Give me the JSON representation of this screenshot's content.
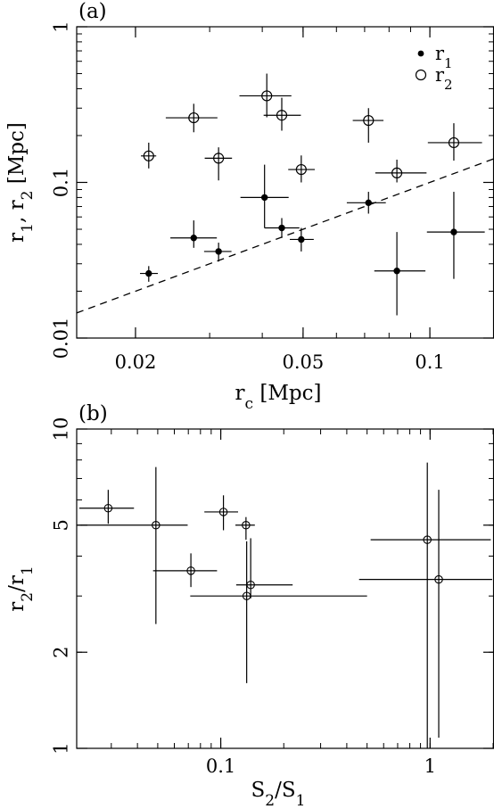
{
  "chart_data": [
    {
      "panel": "(a)",
      "type": "scatter",
      "x_scale": "log",
      "y_scale": "log",
      "xlim": [
        0.0145,
        0.142
      ],
      "ylim": [
        0.01,
        1
      ],
      "xlabel": "r_c [Mpc]",
      "ylabel": "r_1, r_2 [Mpc]",
      "xticks": [
        {
          "value": 0.02,
          "label": "0.02"
        },
        {
          "value": 0.05,
          "label": "0.05"
        },
        {
          "value": 0.1,
          "label": "0.1"
        }
      ],
      "yticks": [
        {
          "value": 0.01,
          "label": "0.01"
        },
        {
          "value": 0.1,
          "label": "0.1"
        },
        {
          "value": 1,
          "label": "1"
        }
      ],
      "legend": {
        "placement": "top-right",
        "entries": [
          {
            "marker": "filled-circle",
            "label": "r_1"
          },
          {
            "marker": "open-circle",
            "label": "r_2"
          }
        ]
      },
      "reference_line": {
        "style": "dashed",
        "from": [
          0.0145,
          0.0145
        ],
        "to": [
          0.142,
          0.142
        ]
      },
      "series": [
        {
          "name": "r_1",
          "marker": "filled-circle",
          "points": [
            {
              "x": 0.0215,
              "y": 0.026,
              "xerr": [
                0.0205,
                0.0226
              ],
              "yerr": [
                0.023,
                0.029
              ]
            },
            {
              "x": 0.0275,
              "y": 0.044,
              "xerr": [
                0.0242,
                0.0312
              ],
              "yerr": [
                0.038,
                0.057
              ]
            },
            {
              "x": 0.0315,
              "y": 0.036,
              "xerr": [
                0.0291,
                0.0338
              ],
              "yerr": [
                0.031,
                0.041
              ]
            },
            {
              "x": 0.0405,
              "y": 0.08,
              "xerr": [
                0.0355,
                0.0462
              ],
              "yerr": [
                0.051,
                0.13
              ]
            },
            {
              "x": 0.0445,
              "y": 0.051,
              "xerr": [
                0.0405,
                0.049
              ],
              "yerr": [
                0.044,
                0.059
              ]
            },
            {
              "x": 0.0495,
              "y": 0.043,
              "xerr": [
                0.0465,
                0.053
              ],
              "yerr": [
                0.036,
                0.051
              ]
            },
            {
              "x": 0.0715,
              "y": 0.074,
              "xerr": [
                0.0635,
                0.0786
              ],
              "yerr": [
                0.063,
                0.087
              ]
            },
            {
              "x": 0.0835,
              "y": 0.027,
              "xerr": [
                0.0738,
                0.0976
              ],
              "yerr": [
                0.014,
                0.048
              ]
            },
            {
              "x": 0.114,
              "y": 0.048,
              "xerr": [
                0.0984,
                0.135
              ],
              "yerr": [
                0.024,
                0.087
              ]
            }
          ]
        },
        {
          "name": "r_2",
          "marker": "open-circle",
          "points": [
            {
              "x": 0.0215,
              "y": 0.148,
              "xerr": [
                0.0206,
                0.0224
              ],
              "yerr": [
                0.123,
                0.18
              ]
            },
            {
              "x": 0.0275,
              "y": 0.26,
              "xerr": [
                0.0236,
                0.0313
              ],
              "yerr": [
                0.21,
                0.32
              ]
            },
            {
              "x": 0.0315,
              "y": 0.143,
              "xerr": [
                0.0292,
                0.0339
              ],
              "yerr": [
                0.103,
                0.168
              ]
            },
            {
              "x": 0.041,
              "y": 0.36,
              "xerr": [
                0.0353,
                0.0469
              ],
              "yerr": [
                0.262,
                0.5
              ]
            },
            {
              "x": 0.0445,
              "y": 0.27,
              "xerr": [
                0.0403,
                0.0494
              ],
              "yerr": [
                0.215,
                0.35
              ]
            },
            {
              "x": 0.0495,
              "y": 0.121,
              "xerr": [
                0.0461,
                0.0533
              ],
              "yerr": [
                0.1,
                0.149
              ]
            },
            {
              "x": 0.0715,
              "y": 0.25,
              "xerr": [
                0.0656,
                0.0776
              ],
              "yerr": [
                0.18,
                0.3
              ]
            },
            {
              "x": 0.0835,
              "y": 0.115,
              "xerr": [
                0.0742,
                0.0982
              ],
              "yerr": [
                0.1,
                0.14
              ]
            },
            {
              "x": 0.114,
              "y": 0.18,
              "xerr": [
                0.0989,
                0.133
              ],
              "yerr": [
                0.138,
                0.24
              ]
            }
          ]
        }
      ]
    },
    {
      "panel": "(b)",
      "type": "scatter",
      "x_scale": "log",
      "y_scale": "log",
      "xlim": [
        0.0205,
        2.02
      ],
      "ylim": [
        1,
        10
      ],
      "xlabel": "S_2/S_1",
      "ylabel": "r_2/r_1",
      "xticks": [
        {
          "value": 0.1,
          "label": "0.1"
        },
        {
          "value": 1,
          "label": "1"
        }
      ],
      "yticks": [
        {
          "value": 1,
          "label": "1"
        },
        {
          "value": 2,
          "label": "2"
        },
        {
          "value": 5,
          "label": "5"
        },
        {
          "value": 10,
          "label": "10"
        }
      ],
      "series": [
        {
          "name": "",
          "marker": "open-circle-small",
          "points": [
            {
              "x": 0.029,
              "y": 5.65,
              "xerr": [
                0.0211,
                0.0385
              ],
              "yerr": [
                5.05,
                6.45
              ]
            },
            {
              "x": 0.049,
              "y": 5.0,
              "xerr": [
                0.0214,
                0.0695
              ],
              "yerr": [
                2.45,
                7.6
              ]
            },
            {
              "x": 0.072,
              "y": 3.6,
              "xerr": [
                0.0475,
                0.096
              ],
              "yerr": [
                3.2,
                4.08
              ]
            },
            {
              "x": 0.103,
              "y": 5.5,
              "xerr": [
                0.0835,
                0.121
              ],
              "yerr": [
                4.82,
                6.2
              ]
            },
            {
              "x": 0.132,
              "y": 5.0,
              "xerr": [
                0.1175,
                0.1455
              ],
              "yerr": [
                4.5,
                5.3
              ]
            },
            {
              "x": 0.133,
              "y": 3.0,
              "xerr": [
                0.0715,
                0.5
              ],
              "yerr": [
                1.6,
                4.45
              ]
            },
            {
              "x": 0.139,
              "y": 3.25,
              "xerr": [
                0.1185,
                0.2205
              ],
              "yerr": [
                2.95,
                4.55
              ]
            },
            {
              "x": 0.97,
              "y": 4.5,
              "xerr": [
                0.52,
                1.95
              ],
              "yerr": [
                1,
                7.85
              ]
            },
            {
              "x": 1.1,
              "y": 3.38,
              "xerr": [
                0.458,
                1.98
              ],
              "yerr": [
                1.08,
                6.45
              ]
            }
          ]
        }
      ]
    }
  ]
}
